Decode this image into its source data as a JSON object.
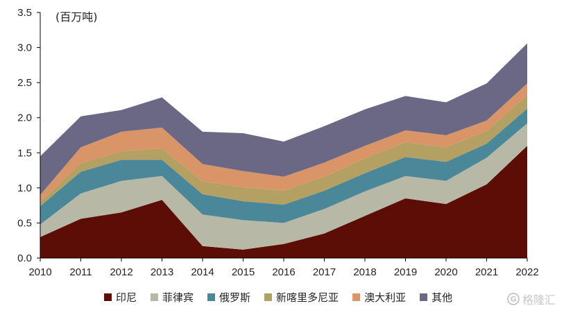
{
  "chart_data": {
    "type": "area",
    "stacked": true,
    "unit_label": "(百万吨)",
    "x": [
      "2010",
      "2011",
      "2012",
      "2013",
      "2014",
      "2015",
      "2016",
      "2017",
      "2018",
      "2019",
      "2020",
      "2021",
      "2022"
    ],
    "ylim": [
      0,
      3.5
    ],
    "yticks": [
      "0.0",
      "0.5",
      "1.0",
      "1.5",
      "2.0",
      "2.5",
      "3.0",
      "3.5"
    ],
    "grid": false,
    "legend_position": "bottom",
    "series": [
      {
        "name": "印尼",
        "color": "#5c0d05",
        "values": [
          0.3,
          0.56,
          0.65,
          0.83,
          0.17,
          0.12,
          0.2,
          0.35,
          0.6,
          0.85,
          0.77,
          1.05,
          1.6
        ]
      },
      {
        "name": "菲律宾",
        "color": "#b7b8a6",
        "values": [
          0.18,
          0.36,
          0.45,
          0.34,
          0.45,
          0.42,
          0.3,
          0.35,
          0.35,
          0.32,
          0.33,
          0.38,
          0.32
        ]
      },
      {
        "name": "俄罗斯",
        "color": "#4a8798",
        "values": [
          0.26,
          0.31,
          0.3,
          0.23,
          0.29,
          0.27,
          0.26,
          0.26,
          0.26,
          0.27,
          0.27,
          0.2,
          0.21
        ]
      },
      {
        "name": "新喀里多尼亚",
        "color": "#b5a064",
        "values": [
          0.06,
          0.12,
          0.12,
          0.16,
          0.18,
          0.2,
          0.2,
          0.2,
          0.21,
          0.21,
          0.21,
          0.18,
          0.19
        ]
      },
      {
        "name": "澳大利亚",
        "color": "#d99467",
        "values": [
          0.1,
          0.23,
          0.28,
          0.3,
          0.25,
          0.23,
          0.2,
          0.2,
          0.18,
          0.17,
          0.17,
          0.15,
          0.17
        ]
      },
      {
        "name": "其他",
        "color": "#6a6884",
        "values": [
          0.55,
          0.44,
          0.31,
          0.43,
          0.46,
          0.54,
          0.5,
          0.52,
          0.52,
          0.49,
          0.47,
          0.53,
          0.57
        ]
      }
    ]
  },
  "watermark": {
    "text": "格隆汇",
    "icon": "G"
  }
}
